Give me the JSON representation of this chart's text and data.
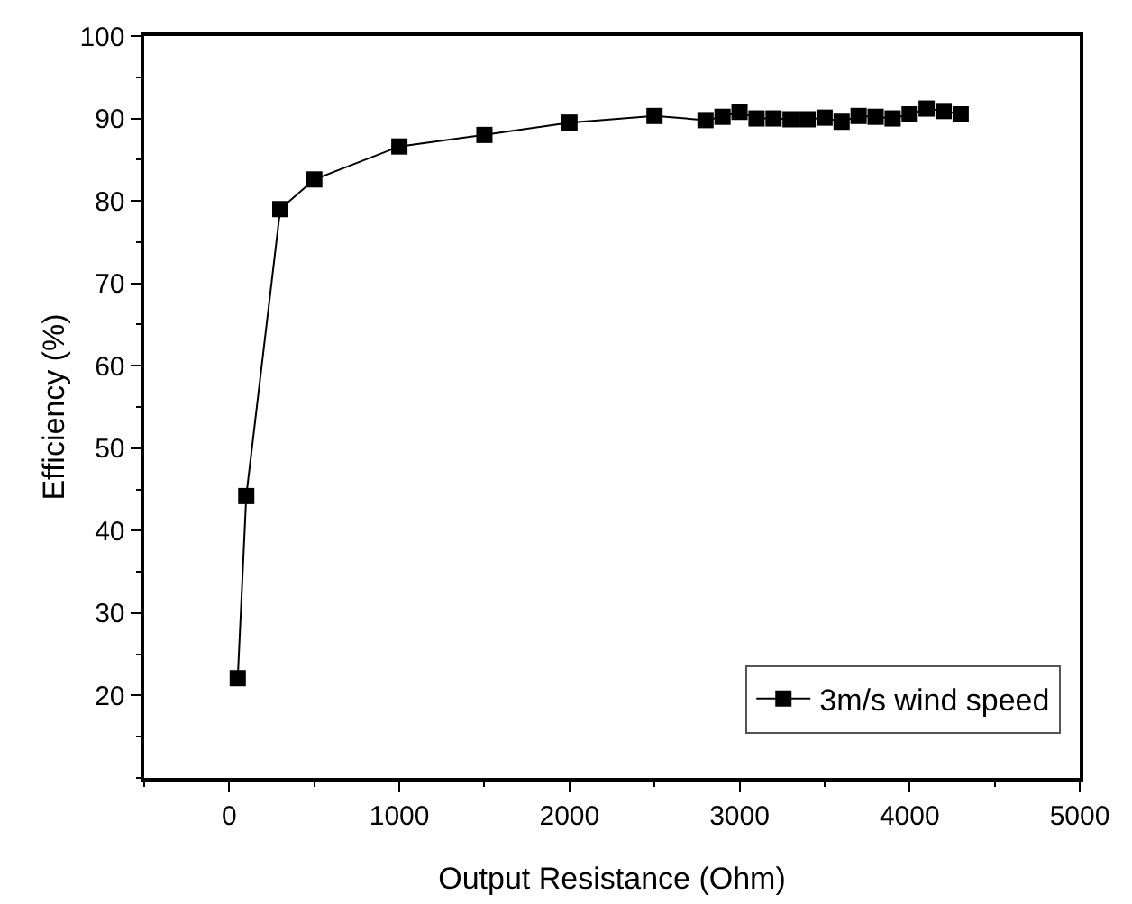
{
  "chart_data": {
    "type": "line",
    "xlabel": "Output Resistance (Ohm)",
    "ylabel": "Efficiency (%)",
    "x": [
      50,
      100,
      300,
      500,
      1000,
      1500,
      2000,
      2500,
      2800,
      2900,
      3000,
      3100,
      3200,
      3300,
      3400,
      3500,
      3600,
      3700,
      3800,
      3900,
      4000,
      4100,
      4200,
      4300
    ],
    "series": [
      {
        "name": "3m/s wind speed",
        "color": "#000000",
        "values": [
          22.1,
          44.2,
          79,
          82.6,
          86.6,
          88,
          89.5,
          90.3,
          89.8,
          90.2,
          90.8,
          90,
          90,
          89.9,
          89.9,
          90.1,
          89.6,
          90.3,
          90.2,
          90,
          90.5,
          91.2,
          90.9,
          90.5
        ]
      }
    ],
    "xlim": [
      -500,
      5000
    ],
    "xticks": [
      0,
      1000,
      2000,
      3000,
      4000,
      5000
    ],
    "ylim": [
      10,
      100
    ],
    "yticks": [
      20,
      30,
      40,
      50,
      60,
      70,
      80,
      90,
      100
    ],
    "marker": "square",
    "line_style": "solid",
    "grid": false,
    "legend": "bottom right"
  }
}
